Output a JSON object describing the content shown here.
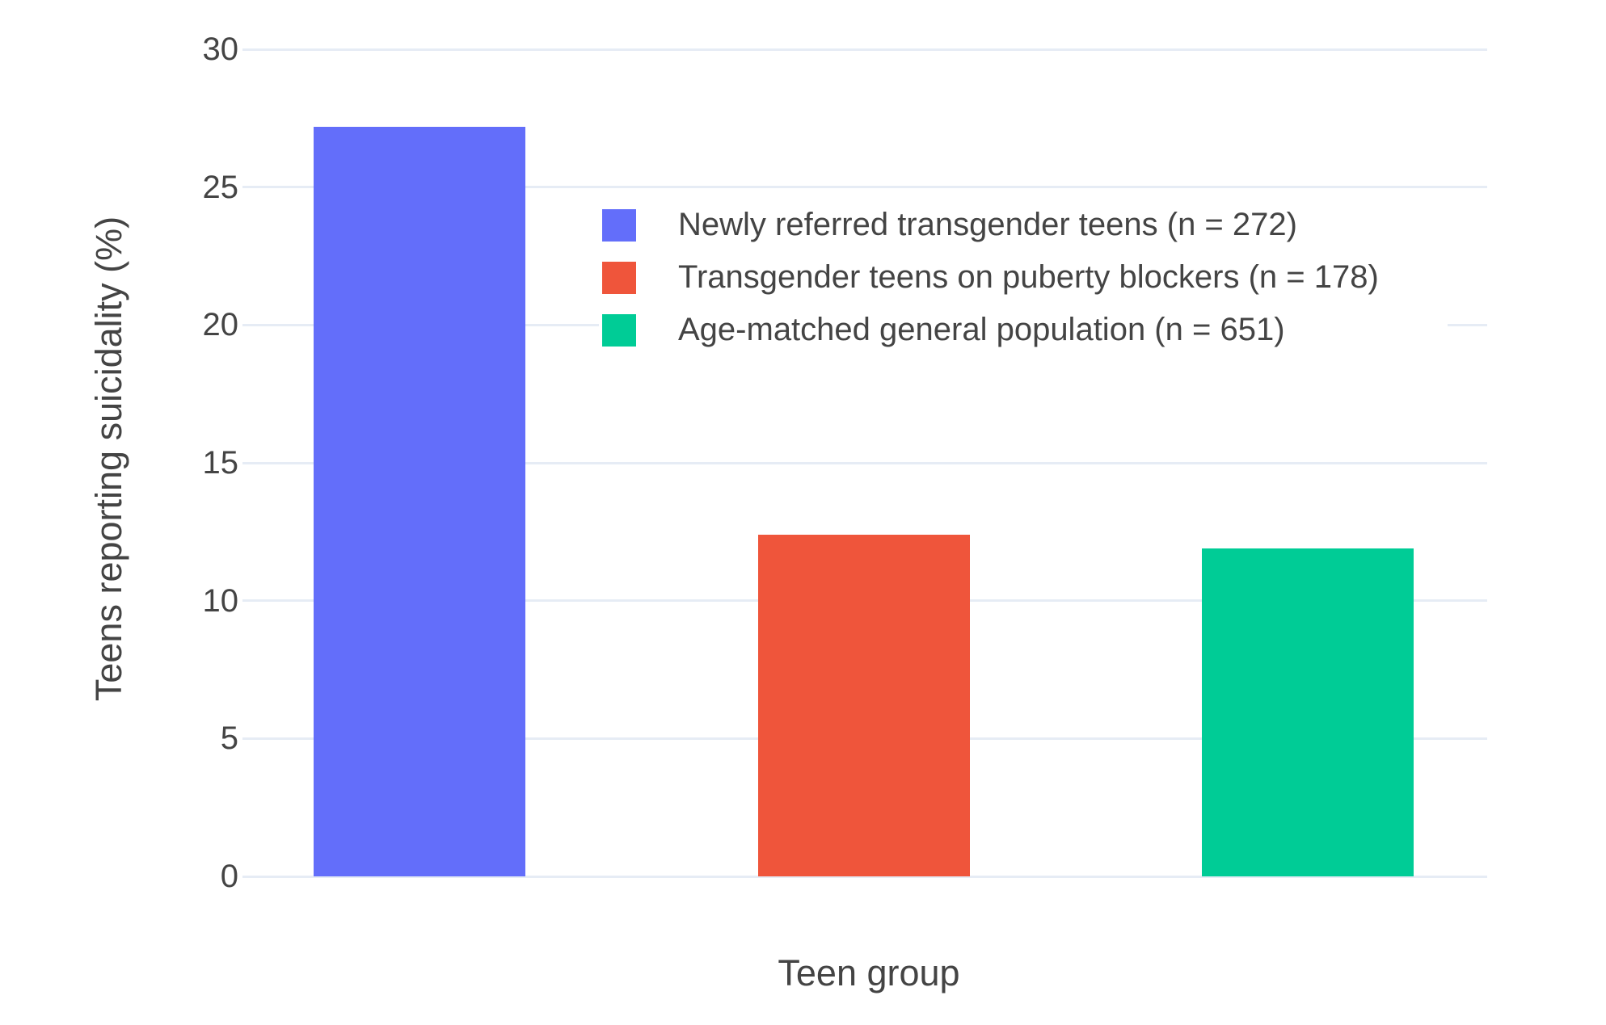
{
  "chart_data": {
    "type": "bar",
    "title": "",
    "xlabel": "Teen group",
    "ylabel": "Teens reporting suicidality (%)",
    "categories": [
      "Newly referred transgender teens (n = 272)",
      "Transgender teens on puberty blockers (n = 178)",
      "Age-matched general population (n = 651)"
    ],
    "series": [
      {
        "name": "Newly referred transgender teens (n = 272)",
        "value": 27.2,
        "color": "#636EFA"
      },
      {
        "name": "Transgender teens on puberty blockers (n = 178)",
        "value": 12.4,
        "color": "#EF553B"
      },
      {
        "name": "Age-matched general population (n = 651)",
        "value": 11.9,
        "color": "#00CC96"
      }
    ],
    "yticks": [
      0,
      5,
      10,
      15,
      20,
      25,
      30
    ],
    "ylim": [
      0,
      30
    ],
    "grid": true,
    "legend_position": "inside-top-right",
    "background": "#ffffff",
    "gridline_color": "#e6ecf5",
    "text_color": "#444444"
  }
}
